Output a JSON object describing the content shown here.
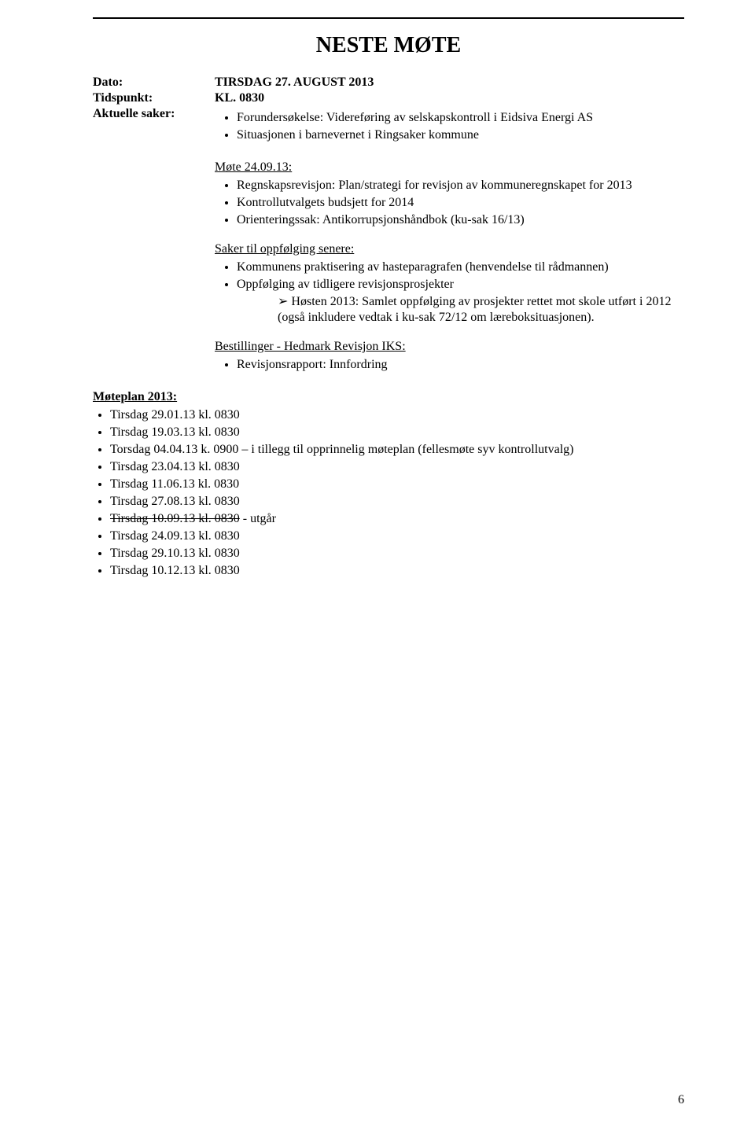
{
  "title": "NESTE MØTE",
  "meta": {
    "dato_label": "Dato:",
    "dato_value": "TIRSDAG 27. AUGUST 2013",
    "tidspunkt_label": "Tidspunkt:",
    "tidspunkt_value": "KL. 0830",
    "aktuelle_label": "Aktuelle saker:"
  },
  "aktuelle_saker": [
    "Forundersøkelse: Videreføring av selskapskontroll i Eidsiva Energi AS",
    "Situasjonen i barnevernet i Ringsaker kommune"
  ],
  "mote": {
    "heading": "Møte 24.09.13:",
    "items": [
      "Regnskapsrevisjon: Plan/strategi for revisjon av kommuneregnskapet for 2013",
      "Kontrollutvalgets budsjett for 2014",
      "Orienteringssak: Antikorrupsjonshåndbok (ku-sak 16/13)"
    ]
  },
  "saker_senere": {
    "heading": "Saker til oppfølging senere:",
    "items": {
      "0": "Kommunens praktisering av hasteparagrafen (henvendelse til rådmannen)",
      "1": "Oppfølging av tidligere revisjonsprosjekter",
      "1_sub": "Høsten 2013: Samlet oppfølging av prosjekter rettet mot skole utført i 2012 (også inkludere vedtak i ku-sak 72/12 om læreboksituasjonen)."
    }
  },
  "bestillinger": {
    "heading": "Bestillinger - Hedmark Revisjon IKS:",
    "items": [
      "Revisjonsrapport: Innfordring"
    ]
  },
  "moteplan": {
    "heading": "Møteplan 2013:",
    "items": {
      "0": "Tirsdag 29.01.13 kl. 0830",
      "1": "Tirsdag 19.03.13 kl. 0830",
      "2": "Torsdag 04.04.13 k. 0900 – i tillegg til opprinnelig møteplan (fellesmøte syv kontrollutvalg)",
      "3": "Tirsdag 23.04.13 kl. 0830",
      "4": "Tirsdag 11.06.13 kl. 0830",
      "5": "Tirsdag 27.08.13 kl. 0830",
      "6_strike": "Tirsdag 10.09.13 kl. 0830",
      "6_suffix": " - utgår",
      "7": "Tirsdag 24.09.13 kl. 0830",
      "8": "Tirsdag 29.10.13 kl. 0830",
      "9": "Tirsdag 10.12.13 kl. 0830"
    }
  },
  "page_number": "6"
}
